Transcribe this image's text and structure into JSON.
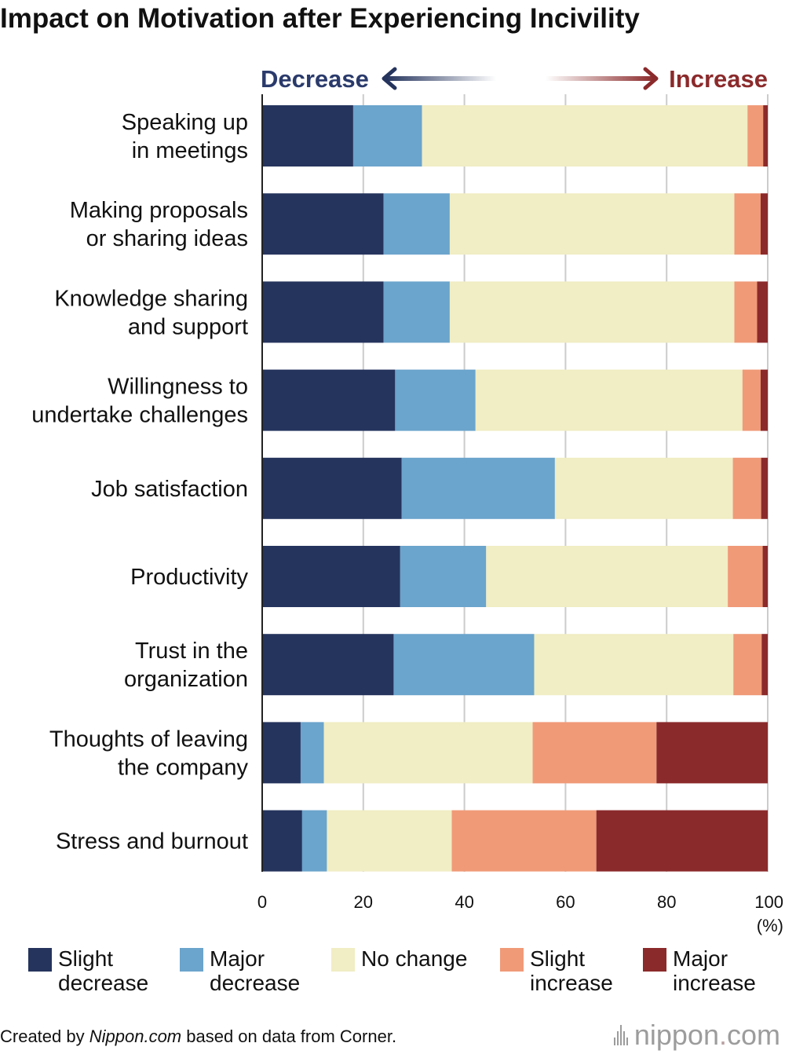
{
  "title": "Impact on Motivation after Experiencing Incivility",
  "direction": {
    "decrease": "Decrease",
    "increase": "Increase"
  },
  "x_unit": "(%)",
  "legend": [
    {
      "label": "Slight\ndecrease",
      "color": "#25345d"
    },
    {
      "label": "Major\ndecrease",
      "color": "#6ba4cc"
    },
    {
      "label": "No change",
      "color": "#f1edc4"
    },
    {
      "label": "Slight\nincrease",
      "color": "#f09a78"
    },
    {
      "label": "Major\nincrease",
      "color": "#8b2a2b"
    }
  ],
  "footer": {
    "prefix": "Created by ",
    "source": "Nippon.com",
    "suffix": " based on data from Corner."
  },
  "brand": {
    "name": "nippon",
    "dot": ".",
    "tld": "com"
  },
  "chart_data": {
    "type": "bar",
    "orientation": "horizontal",
    "stacked": true,
    "title": "Impact on Motivation after Experiencing Incivility",
    "xlabel": "(%)",
    "xlim": [
      0,
      100
    ],
    "xticks": [
      0,
      20,
      40,
      60,
      80,
      100
    ],
    "grid": true,
    "legend_position": "bottom",
    "categories": [
      "Speaking up\nin meetings",
      "Making proposals\nor sharing ideas",
      "Knowledge sharing\nand support",
      "Willingness to\nundertake challenges",
      "Job satisfaction",
      "Productivity",
      "Trust in the\norganization",
      "Thoughts of leaving\nthe company",
      "Stress and burnout"
    ],
    "series": [
      {
        "name": "Slight decrease",
        "color": "#25345d",
        "values": [
          18.0,
          24.0,
          24.0,
          26.3,
          27.6,
          27.3,
          26.0,
          7.6,
          7.9
        ]
      },
      {
        "name": "Major decrease",
        "color": "#6ba4cc",
        "values": [
          13.6,
          13.1,
          13.1,
          15.9,
          30.3,
          17.0,
          27.8,
          4.6,
          4.9
        ]
      },
      {
        "name": "No change",
        "color": "#f1edc4",
        "values": [
          64.4,
          56.3,
          56.3,
          52.8,
          35.2,
          47.8,
          39.4,
          41.3,
          24.7
        ]
      },
      {
        "name": "Slight increase",
        "color": "#f09a78",
        "values": [
          3.1,
          5.2,
          4.5,
          3.6,
          5.6,
          6.9,
          5.6,
          24.5,
          28.6
        ]
      },
      {
        "name": "Major increase",
        "color": "#8b2a2b",
        "values": [
          0.9,
          1.4,
          2.1,
          1.4,
          1.3,
          1.0,
          1.2,
          22.0,
          33.9
        ]
      }
    ]
  }
}
